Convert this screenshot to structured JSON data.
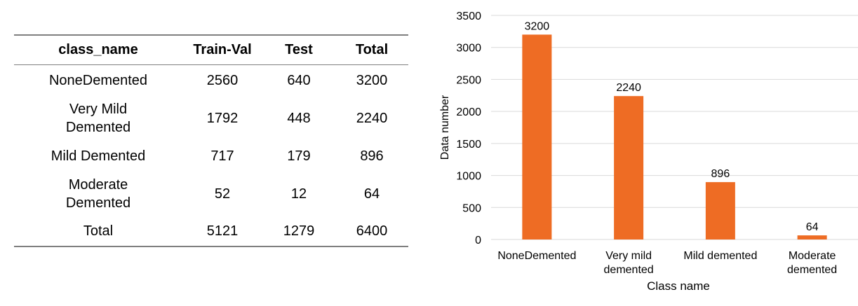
{
  "table": {
    "headers": [
      "class_name",
      "Train-Val",
      "Test",
      "Total"
    ],
    "rows": [
      [
        "NoneDemented",
        "2560",
        "640",
        "3200"
      ],
      [
        "Very Mild\nDemented",
        "1792",
        "448",
        "2240"
      ],
      [
        "Mild Demented",
        "717",
        "179",
        "896"
      ],
      [
        "Moderate\nDemented",
        "52",
        "12",
        "64"
      ],
      [
        "Total",
        "5121",
        "1279",
        "6400"
      ]
    ]
  },
  "chart_data": {
    "type": "bar",
    "categories": [
      "NoneDemented",
      "Very mild\ndemented",
      "Mild demented",
      "Moderate\ndemented"
    ],
    "values": [
      3200,
      2240,
      896,
      64
    ],
    "data_labels": [
      "3200",
      "2240",
      "896",
      "64"
    ],
    "xlabel": "Class name",
    "ylabel": "Data number",
    "ylim": [
      0,
      3500
    ],
    "yticks": [
      0,
      500,
      1000,
      1500,
      2000,
      2500,
      3000,
      3500
    ],
    "grid": true,
    "legend": "none",
    "bar_color": "#ee6c24",
    "grid_color": "#d9d9d9"
  }
}
